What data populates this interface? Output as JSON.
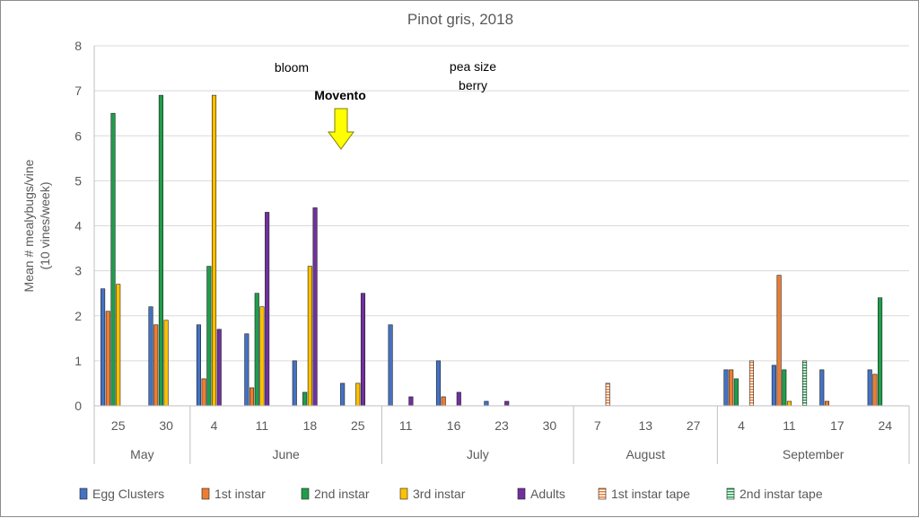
{
  "chart_data": {
    "type": "bar",
    "title": "Pinot gris, 2018",
    "ylabel": [
      "Mean # mealybugs/vine",
      "(10 vines/week)"
    ],
    "xlabel": "",
    "ylim": [
      0,
      8
    ],
    "yticks": [
      0,
      1,
      2,
      3,
      4,
      5,
      6,
      7,
      8
    ],
    "grid": true,
    "legend_position": "bottom",
    "categories": [
      "25",
      "30",
      "4",
      "11",
      "18",
      "25",
      "11",
      "16",
      "23",
      "30",
      "7",
      "13",
      "27",
      "4",
      "11",
      "17",
      "24"
    ],
    "months": [
      {
        "name": "May",
        "count": 2
      },
      {
        "name": "June",
        "count": 4
      },
      {
        "name": "July",
        "count": 4
      },
      {
        "name": "August",
        "count": 3
      },
      {
        "name": "September",
        "count": 4
      }
    ],
    "series": [
      {
        "name": "Egg Clusters",
        "color": "#4472c4",
        "pattern": "solid",
        "values": [
          2.6,
          2.2,
          1.8,
          1.6,
          1.0,
          0.5,
          1.8,
          1.0,
          0.1,
          0,
          0,
          0,
          0,
          0.8,
          0.9,
          0.8,
          0.8
        ]
      },
      {
        "name": "1st instar",
        "color": "#ed7d31",
        "pattern": "solid",
        "values": [
          2.1,
          1.8,
          0.6,
          0.4,
          0,
          0,
          0,
          0.2,
          0,
          0,
          0,
          0,
          0,
          0.8,
          2.9,
          0.1,
          0.7
        ]
      },
      {
        "name": "2nd instar",
        "color": "#1e9e4a",
        "pattern": "solid",
        "values": [
          6.5,
          6.9,
          3.1,
          2.5,
          0.3,
          0,
          0,
          0,
          0,
          0,
          0,
          0,
          0,
          0.6,
          0.8,
          0,
          2.4
        ]
      },
      {
        "name": "3rd instar",
        "color": "#ffc000",
        "pattern": "solid",
        "values": [
          2.7,
          1.9,
          6.9,
          2.2,
          3.1,
          0.5,
          0,
          0,
          0,
          0,
          0,
          0,
          0,
          0,
          0.1,
          0,
          0
        ]
      },
      {
        "name": "Adults",
        "color": "#7030a0",
        "pattern": "solid",
        "values": [
          0,
          0,
          1.7,
          4.3,
          4.4,
          2.5,
          0.2,
          0.3,
          0.1,
          0,
          0,
          0,
          0,
          0,
          0,
          0,
          0
        ]
      },
      {
        "name": "1st instar tape",
        "color": "#ed7d31",
        "pattern": "hatched",
        "values": [
          0,
          0,
          0,
          0,
          0,
          0,
          0,
          0,
          0,
          0,
          0.5,
          0,
          0,
          1.0,
          0,
          0,
          0
        ]
      },
      {
        "name": "2nd instar tape",
        "color": "#1e9e4a",
        "pattern": "hatched",
        "values": [
          0,
          0,
          0,
          0,
          0,
          0,
          0,
          0,
          0,
          0,
          0,
          0,
          0,
          0,
          1.0,
          0,
          0
        ]
      }
    ],
    "annotations": [
      {
        "text": "bloom"
      },
      {
        "text": "pea size\nberry"
      },
      {
        "text": "Movento",
        "bold": true,
        "arrow": "down",
        "arrow_color": "#ffff00"
      }
    ]
  }
}
